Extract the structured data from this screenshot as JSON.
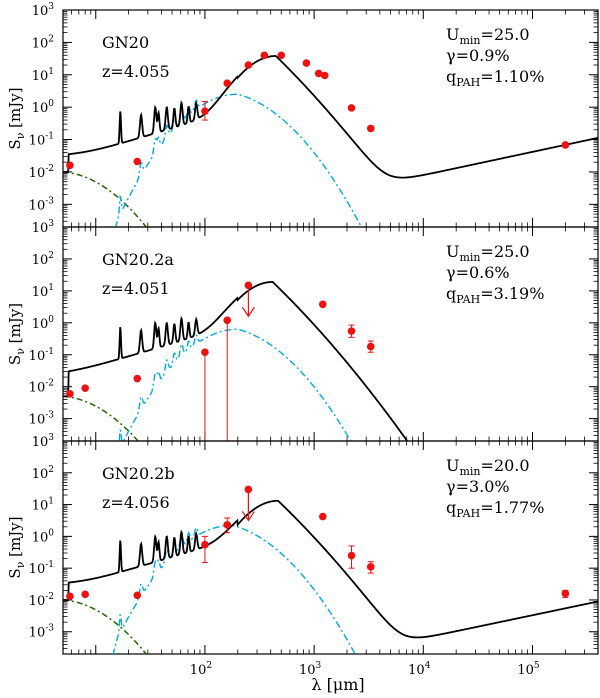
{
  "figure": {
    "xlabel_html": "λ [μm]",
    "xlabel_prefix": "λ [",
    "xlabel_unit": "μm",
    "xlabel_suffix": "]",
    "ylabel": "Sν [mJy]",
    "ylabel_main": "S",
    "ylabel_sub": "ν",
    "ylabel_unit": " [mJy]",
    "x_range_log10": [
      0.7,
      5.6
    ],
    "x_tick_labels": [
      {
        "base": "10",
        "exp": "2",
        "log": 2
      },
      {
        "base": "10",
        "exp": "3",
        "log": 3
      },
      {
        "base": "10",
        "exp": "4",
        "log": 4
      },
      {
        "base": "10",
        "exp": "5",
        "log": 5
      }
    ],
    "y_range_log10": [
      -3.7,
      3.0
    ],
    "y_tick_labels": [
      {
        "base": "10",
        "exp": "3",
        "log": 3
      },
      {
        "base": "10",
        "exp": "2",
        "log": 2
      },
      {
        "base": "10",
        "exp": "1",
        "log": 1
      },
      {
        "base": "10",
        "exp": "0",
        "log": 0
      },
      {
        "base": "10",
        "exp": "-1",
        "log": -1
      },
      {
        "base": "10",
        "exp": "-2",
        "log": -2
      },
      {
        "base": "10",
        "exp": "-3",
        "log": -3
      }
    ],
    "colors": {
      "total_model": "#000000",
      "dust_component": "#00aadd",
      "stellar_component": "#226600",
      "photometry": "#ee1111"
    }
  },
  "chart_data": [
    {
      "type": "line",
      "name": "GN20",
      "label": "GN20",
      "redshift_label": "z=4.055",
      "params": [
        {
          "main": "U",
          "sub": "min",
          "value": "=25.0"
        },
        {
          "main": "γ",
          "sub": "",
          "value": "=0.9%"
        },
        {
          "main": "q",
          "sub": "PAH",
          "value": "=1.10%"
        }
      ],
      "model": {
        "log_peak_wavelength": 2.65,
        "log_peak_flux": 1.58,
        "sync_norm_at_1e4": -2.1,
        "sync_slope": 0.72,
        "pah_norm": 0.06,
        "dust_peak_log_flux": 0.4,
        "dust_peak_log_wavelength": 2.3,
        "stellar_norm": -2.0
      },
      "photometry": [
        {
          "wavelength_um": 5.8,
          "flux_mjy": 0.016
        },
        {
          "wavelength_um": 24,
          "flux_mjy": 0.021
        },
        {
          "wavelength_um": 100,
          "flux_mjy": 0.75,
          "err_lo": 0.4,
          "err_hi": 1.5
        },
        {
          "wavelength_um": 160,
          "flux_mjy": 5.5
        },
        {
          "wavelength_um": 250,
          "flux_mjy": 20
        },
        {
          "wavelength_um": 350,
          "flux_mjy": 40
        },
        {
          "wavelength_um": 500,
          "flux_mjy": 40
        },
        {
          "wavelength_um": 850,
          "flux_mjy": 23
        },
        {
          "wavelength_um": 1100,
          "flux_mjy": 11
        },
        {
          "wavelength_um": 1250,
          "flux_mjy": 9.5
        },
        {
          "wavelength_um": 2200,
          "flux_mjy": 0.95
        },
        {
          "wavelength_um": 3300,
          "flux_mjy": 0.22
        },
        {
          "wavelength_um": 200000,
          "flux_mjy": 0.068
        }
      ],
      "upper_limits": []
    },
    {
      "type": "line",
      "name": "GN20.2a",
      "label": "GN20.2a",
      "redshift_label": "z=4.051",
      "params": [
        {
          "main": "U",
          "sub": "min",
          "value": "=25.0"
        },
        {
          "main": "γ",
          "sub": "",
          "value": "=0.6%"
        },
        {
          "main": "q",
          "sub": "PAH",
          "value": "=3.19%"
        }
      ],
      "model": {
        "log_peak_wavelength": 2.62,
        "log_peak_flux": 1.28,
        "sync_norm_at_1e4": -6.0,
        "sync_slope": 0.72,
        "pah_norm": 0.06,
        "dust_peak_log_flux": -0.2,
        "dust_peak_log_wavelength": 2.3,
        "stellar_norm": -2.3
      },
      "photometry": [
        {
          "wavelength_um": 5.8,
          "flux_mjy": 0.006
        },
        {
          "wavelength_um": 8,
          "flux_mjy": 0.009
        },
        {
          "wavelength_um": 24,
          "flux_mjy": 0.018
        },
        {
          "wavelength_um": 100,
          "flux_mjy": 0.12,
          "err_lo": 0.0002,
          "err_hi": 0.12
        },
        {
          "wavelength_um": 160,
          "flux_mjy": 1.2,
          "err_lo": 0.0002,
          "err_hi": 1.2
        },
        {
          "wavelength_um": 1200,
          "flux_mjy": 3.8
        },
        {
          "wavelength_um": 2200,
          "flux_mjy": 0.55,
          "err_lo": 0.35,
          "err_hi": 0.85
        },
        {
          "wavelength_um": 3300,
          "flux_mjy": 0.18,
          "err_lo": 0.12,
          "err_hi": 0.27
        }
      ],
      "upper_limits": [
        {
          "wavelength_um": 250,
          "flux_mjy": 15
        }
      ]
    },
    {
      "type": "line",
      "name": "GN20.2b",
      "label": "GN20.2b",
      "redshift_label": "z=4.056",
      "params": [
        {
          "main": "U",
          "sub": "min",
          "value": "=20.0"
        },
        {
          "main": "γ",
          "sub": "",
          "value": "=3.0%"
        },
        {
          "main": "q",
          "sub": "PAH",
          "value": "=1.77%"
        }
      ],
      "model": {
        "log_peak_wavelength": 2.67,
        "log_peak_flux": 1.12,
        "sync_norm_at_1e4": -3.2,
        "sync_slope": 0.72,
        "pah_norm": 0.035,
        "dust_peak_log_flux": 0.35,
        "dust_peak_log_wavelength": 2.25,
        "stellar_norm": -2.0
      },
      "photometry": [
        {
          "wavelength_um": 5.8,
          "flux_mjy": 0.013
        },
        {
          "wavelength_um": 8,
          "flux_mjy": 0.015
        },
        {
          "wavelength_um": 24,
          "flux_mjy": 0.014
        },
        {
          "wavelength_um": 100,
          "flux_mjy": 0.55,
          "err_lo": 0.15,
          "err_hi": 1.0
        },
        {
          "wavelength_um": 160,
          "flux_mjy": 2.3,
          "err_lo": 1.3,
          "err_hi": 3.8
        },
        {
          "wavelength_um": 1200,
          "flux_mjy": 4.2
        },
        {
          "wavelength_um": 2200,
          "flux_mjy": 0.25,
          "err_lo": 0.1,
          "err_hi": 0.5
        },
        {
          "wavelength_um": 3300,
          "flux_mjy": 0.11,
          "err_lo": 0.07,
          "err_hi": 0.16
        },
        {
          "wavelength_um": 200000,
          "flux_mjy": 0.016,
          "err_lo": 0.012,
          "err_hi": 0.02
        }
      ],
      "upper_limits": [
        {
          "wavelength_um": 250,
          "flux_mjy": 30
        }
      ]
    }
  ]
}
